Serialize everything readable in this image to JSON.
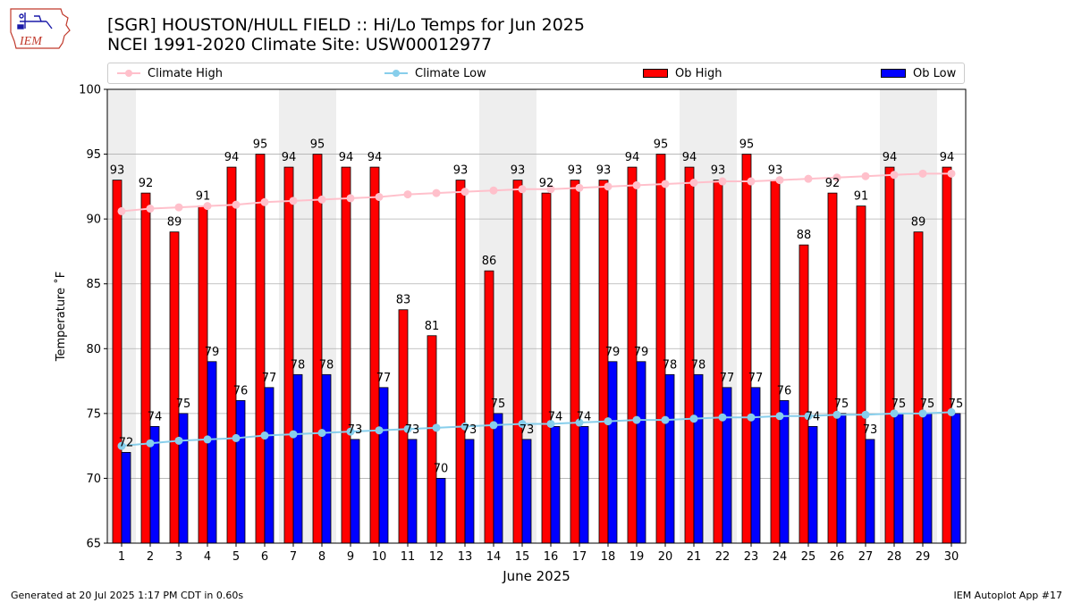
{
  "header": {
    "title_line1": "[SGR] HOUSTON/HULL FIELD :: Hi/Lo Temps for Jun 2025",
    "title_line2": "NCEI 1991-2020 Climate Site: USW00012977"
  },
  "logo": {
    "text": "IEM",
    "icon": "iem-iowa-logo"
  },
  "footer": {
    "left": "Generated at 20 Jul 2025 1:17 PM CDT in 0.60s",
    "right": "IEM Autoplot App #17"
  },
  "colors": {
    "ob_high": "#ff0000",
    "ob_low": "#0000ff",
    "climate_high": "#ffc0cb",
    "climate_low": "#87ceeb",
    "weekend_shade": "#eeeeee",
    "grid": "#b0b0b0"
  },
  "chart_data": {
    "type": "bar",
    "xlabel": "June 2025",
    "ylabel": "Temperature $^\\circ$F",
    "ylim": [
      65,
      100
    ],
    "yticks": [
      65,
      70,
      75,
      80,
      85,
      90,
      95,
      100
    ],
    "grid": "horizontal",
    "legend_position": "top",
    "categories": [
      "1",
      "2",
      "3",
      "4",
      "5",
      "6",
      "7",
      "8",
      "9",
      "10",
      "11",
      "12",
      "13",
      "14",
      "15",
      "16",
      "17",
      "18",
      "19",
      "20",
      "21",
      "22",
      "23",
      "24",
      "25",
      "26",
      "27",
      "28",
      "29",
      "30"
    ],
    "shaded_days": [
      1,
      7,
      8,
      14,
      15,
      21,
      22,
      28,
      29
    ],
    "series": [
      {
        "name": "Ob High",
        "kind": "bar",
        "values": [
          93,
          92,
          89,
          91,
          94,
          95,
          94,
          95,
          94,
          94,
          83,
          81,
          93,
          86,
          93,
          92,
          93,
          93,
          94,
          95,
          94,
          93,
          95,
          93,
          88,
          92,
          91,
          94,
          89,
          94
        ]
      },
      {
        "name": "Ob Low",
        "kind": "bar",
        "values": [
          72,
          74,
          75,
          79,
          76,
          77,
          78,
          78,
          73,
          77,
          73,
          70,
          73,
          75,
          73,
          74,
          74,
          79,
          79,
          78,
          78,
          77,
          77,
          76,
          74,
          75,
          73,
          75,
          75,
          75
        ]
      },
      {
        "name": "Climate High",
        "kind": "line",
        "values": [
          90.6,
          90.8,
          90.9,
          91.0,
          91.1,
          91.3,
          91.4,
          91.5,
          91.6,
          91.7,
          91.9,
          92.0,
          92.1,
          92.2,
          92.3,
          92.3,
          92.4,
          92.5,
          92.6,
          92.7,
          92.8,
          92.9,
          92.9,
          93.0,
          93.1,
          93.2,
          93.3,
          93.4,
          93.5,
          93.5
        ]
      },
      {
        "name": "Climate Low",
        "kind": "line",
        "values": [
          72.5,
          72.7,
          72.9,
          73.0,
          73.1,
          73.3,
          73.4,
          73.5,
          73.6,
          73.7,
          73.8,
          73.9,
          74.0,
          74.1,
          74.2,
          74.2,
          74.3,
          74.4,
          74.5,
          74.5,
          74.6,
          74.7,
          74.7,
          74.8,
          74.8,
          74.9,
          74.9,
          75.0,
          75.0,
          75.1
        ]
      }
    ]
  }
}
